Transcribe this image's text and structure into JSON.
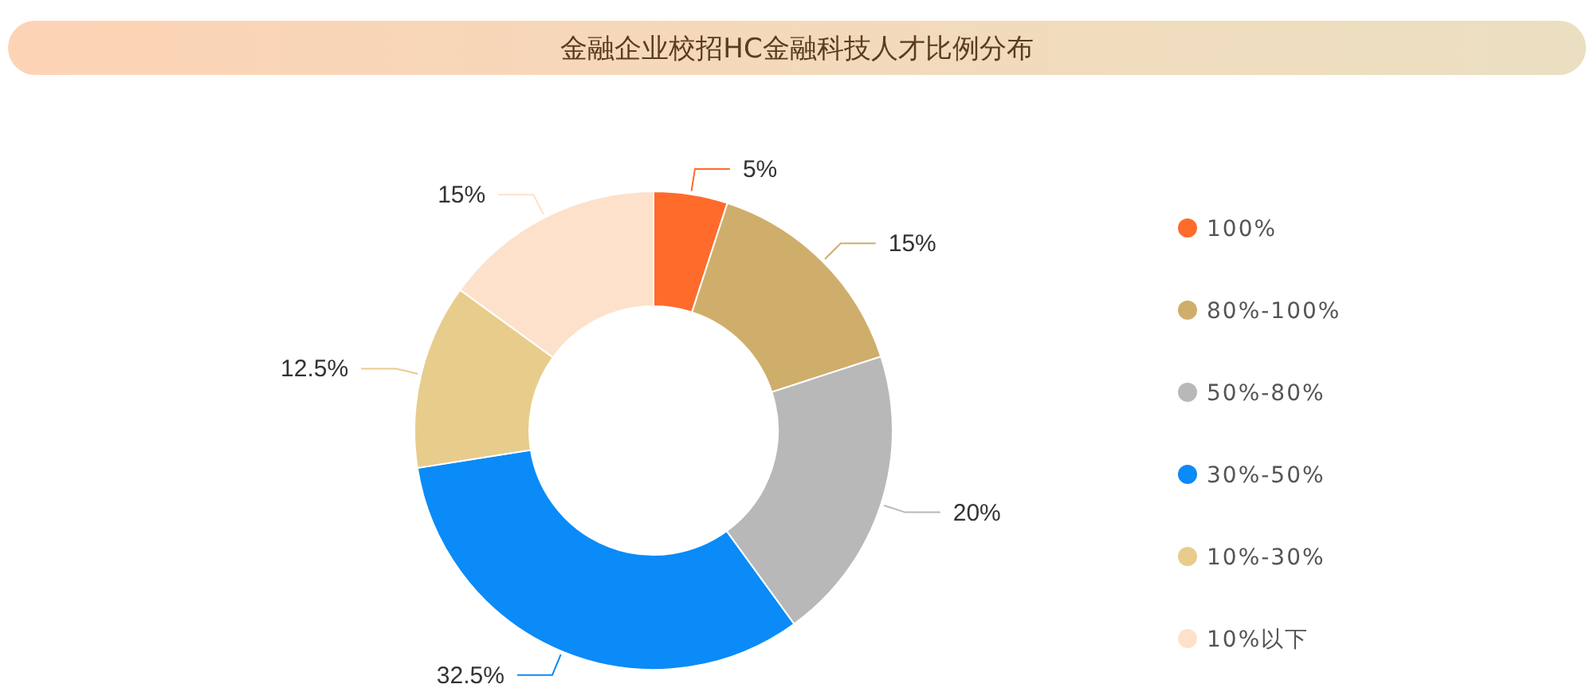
{
  "chart_data": {
    "type": "donut",
    "title": "金融企业校招HC金融科技人才比例分布",
    "categories": [
      "100%",
      "80%-100%",
      "50%-80%",
      "30%-50%",
      "10%-30%",
      "10%以下"
    ],
    "values": [
      5,
      15,
      20,
      32.5,
      12.5,
      15
    ],
    "colors": [
      "#ff6b2b",
      "#cfae6b",
      "#b8b8b8",
      "#0a8bf7",
      "#e8cc8c",
      "#fde1cb"
    ],
    "value_labels": [
      "5%",
      "15%",
      "20%",
      "32.5%",
      "12.5%",
      "15%"
    ],
    "legend": "right"
  }
}
